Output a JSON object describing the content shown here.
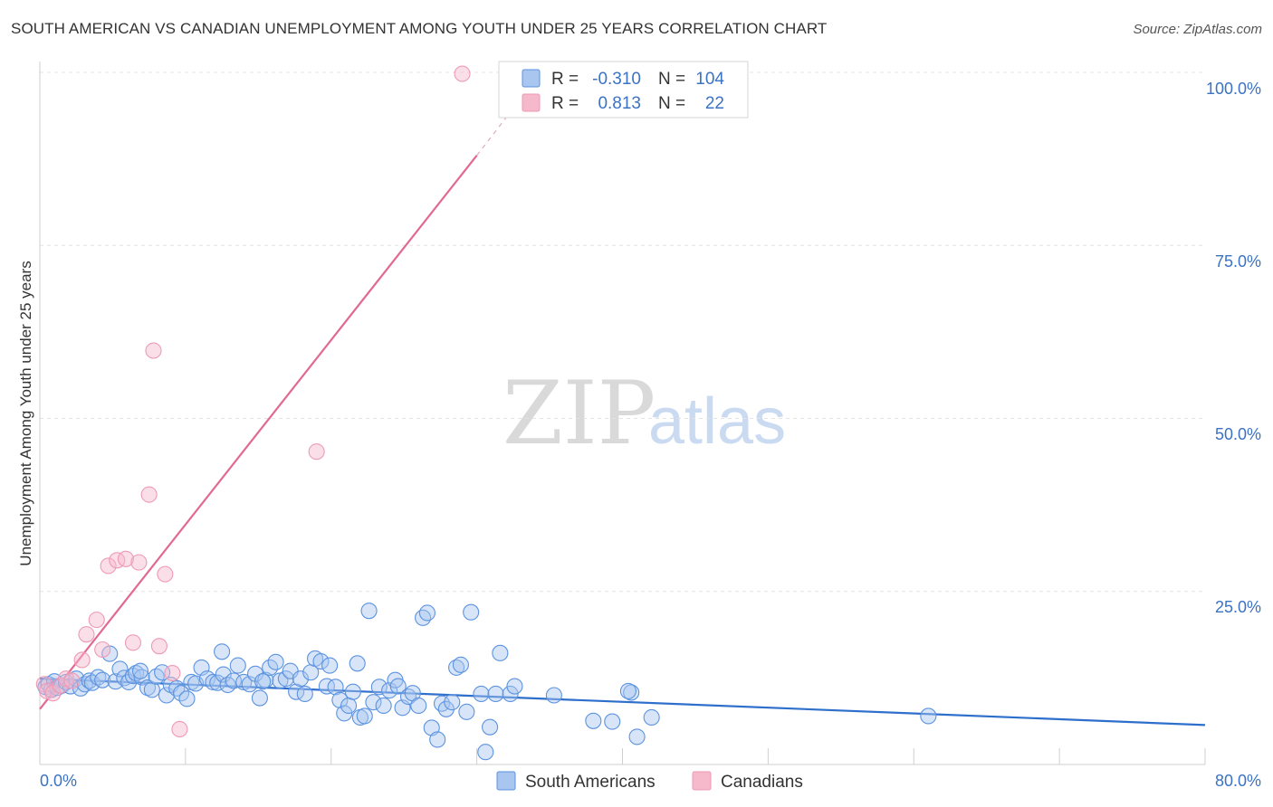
{
  "header": {
    "title": "SOUTH AMERICAN VS CANADIAN UNEMPLOYMENT AMONG YOUTH UNDER 25 YEARS CORRELATION CHART",
    "source": "Source: ZipAtlas.com"
  },
  "watermark": {
    "zip": "ZIP",
    "atlas": "atlas"
  },
  "stats_legend": {
    "rows": [
      {
        "r_label": "R =",
        "r_value": "-0.310",
        "n_label": "N =",
        "n_value": "104",
        "color": "#a8c6f0"
      },
      {
        "r_label": "R =",
        "r_value": "0.813",
        "n_label": "N =",
        "n_value": "22",
        "color": "#f6b8cb"
      }
    ]
  },
  "chart_data": {
    "type": "scatter",
    "title": "SOUTH AMERICAN VS CANADIAN UNEMPLOYMENT AMONG YOUTH UNDER 25 YEARS CORRELATION CHART",
    "xlabel": "",
    "ylabel": "Unemployment Among Youth under 25 years",
    "xlim": [
      0,
      80
    ],
    "ylim": [
      0,
      100
    ],
    "x_tick_labels": [
      "0.0%",
      "80.0%"
    ],
    "y_ticks": [
      25,
      50,
      75,
      100
    ],
    "y_tick_labels": [
      "25.0%",
      "50.0%",
      "75.0%",
      "100.0%"
    ],
    "grid": true,
    "legend": [
      "South Americans",
      "Canadians"
    ],
    "series": [
      {
        "name": "South Americans",
        "color": "#5b93e0",
        "fill": "#a8c6f0",
        "trend": {
          "x": [
            0,
            80
          ],
          "y": [
            12.4,
            5.7
          ],
          "color": "#2e6fcc"
        },
        "points": [
          [
            0.4,
            11.2
          ],
          [
            0.6,
            11.6
          ],
          [
            0.8,
            10.8
          ],
          [
            1.0,
            12.0
          ],
          [
            1.2,
            11.1
          ],
          [
            1.5,
            11.4
          ],
          [
            1.8,
            11.9
          ],
          [
            2.1,
            11.3
          ],
          [
            2.5,
            12.4
          ],
          [
            2.8,
            11.0
          ],
          [
            3.1,
            11.6
          ],
          [
            3.4,
            12.1
          ],
          [
            3.6,
            11.8
          ],
          [
            4.0,
            12.6
          ],
          [
            4.3,
            12.2
          ],
          [
            4.8,
            16.0
          ],
          [
            5.2,
            12.0
          ],
          [
            5.5,
            13.8
          ],
          [
            5.8,
            12.5
          ],
          [
            6.1,
            11.9
          ],
          [
            6.4,
            12.8
          ],
          [
            6.6,
            13.2
          ],
          [
            7.0,
            12.6
          ],
          [
            7.4,
            11.1
          ],
          [
            7.7,
            10.8
          ],
          [
            8.0,
            12.7
          ],
          [
            8.4,
            13.3
          ],
          [
            8.7,
            10.0
          ],
          [
            9.0,
            11.5
          ],
          [
            9.4,
            11.0
          ],
          [
            9.7,
            10.3
          ],
          [
            10.1,
            9.5
          ],
          [
            10.4,
            11.9
          ],
          [
            10.7,
            11.7
          ],
          [
            11.1,
            14.0
          ],
          [
            11.5,
            12.4
          ],
          [
            11.9,
            11.9
          ],
          [
            12.2,
            11.8
          ],
          [
            12.6,
            13.0
          ],
          [
            12.5,
            16.3
          ],
          [
            12.9,
            11.5
          ],
          [
            13.3,
            12.1
          ],
          [
            13.6,
            14.3
          ],
          [
            14.0,
            11.9
          ],
          [
            14.4,
            11.6
          ],
          [
            14.8,
            13.1
          ],
          [
            15.1,
            9.6
          ],
          [
            15.5,
            12.2
          ],
          [
            15.8,
            14.0
          ],
          [
            16.2,
            14.8
          ],
          [
            16.5,
            12.1
          ],
          [
            16.9,
            12.4
          ],
          [
            17.2,
            13.5
          ],
          [
            17.6,
            10.5
          ],
          [
            17.9,
            12.4
          ],
          [
            18.2,
            10.2
          ],
          [
            18.6,
            13.3
          ],
          [
            18.9,
            15.3
          ],
          [
            19.3,
            14.9
          ],
          [
            19.7,
            11.3
          ],
          [
            19.9,
            14.3
          ],
          [
            20.3,
            11.2
          ],
          [
            20.6,
            9.3
          ],
          [
            20.9,
            7.4
          ],
          [
            21.2,
            8.5
          ],
          [
            21.5,
            10.5
          ],
          [
            21.8,
            14.6
          ],
          [
            22.0,
            6.8
          ],
          [
            22.3,
            7.0
          ],
          [
            22.6,
            22.2
          ],
          [
            22.9,
            9.0
          ],
          [
            23.3,
            11.2
          ],
          [
            23.6,
            8.5
          ],
          [
            24.0,
            10.7
          ],
          [
            24.4,
            12.2
          ],
          [
            24.6,
            11.3
          ],
          [
            24.9,
            8.2
          ],
          [
            25.3,
            9.8
          ],
          [
            25.6,
            10.3
          ],
          [
            26.0,
            8.5
          ],
          [
            26.3,
            21.2
          ],
          [
            26.6,
            21.9
          ],
          [
            26.9,
            5.3
          ],
          [
            27.3,
            3.6
          ],
          [
            27.6,
            8.8
          ],
          [
            27.9,
            8.0
          ],
          [
            28.3,
            9.0
          ],
          [
            28.6,
            14.0
          ],
          [
            28.9,
            14.4
          ],
          [
            29.3,
            7.6
          ],
          [
            29.6,
            22.0
          ],
          [
            30.3,
            10.2
          ],
          [
            30.6,
            1.8
          ],
          [
            30.9,
            5.4
          ],
          [
            31.3,
            10.2
          ],
          [
            31.6,
            16.1
          ],
          [
            32.3,
            10.2
          ],
          [
            32.6,
            11.3
          ],
          [
            35.3,
            10.0
          ],
          [
            38.0,
            6.3
          ],
          [
            39.3,
            6.2
          ],
          [
            40.6,
            10.4
          ],
          [
            41.0,
            4.0
          ],
          [
            42.0,
            6.8
          ],
          [
            61.0,
            7.0
          ],
          [
            40.4,
            10.6
          ],
          [
            15.3,
            12.0
          ],
          [
            6.9,
            13.5
          ]
        ]
      },
      {
        "name": "Canadians",
        "color": "#ee9ab5",
        "fill": "#f6b8cb",
        "trend": {
          "x": [
            0,
            30
          ],
          "y": [
            8.0,
            88.0
          ],
          "x_dashed_to": 33.5,
          "y_dashed_to": 97.5,
          "color": "#e26990"
        },
        "points": [
          [
            0.3,
            11.6
          ],
          [
            0.5,
            10.6
          ],
          [
            0.9,
            10.3
          ],
          [
            1.4,
            11.4
          ],
          [
            1.8,
            12.4
          ],
          [
            2.2,
            12.1
          ],
          [
            2.9,
            15.1
          ],
          [
            3.2,
            18.8
          ],
          [
            3.9,
            20.9
          ],
          [
            4.3,
            16.6
          ],
          [
            4.7,
            28.7
          ],
          [
            5.3,
            29.5
          ],
          [
            5.9,
            29.7
          ],
          [
            6.4,
            17.6
          ],
          [
            6.8,
            29.2
          ],
          [
            7.5,
            39.0
          ],
          [
            7.8,
            59.8
          ],
          [
            8.2,
            17.1
          ],
          [
            8.6,
            27.5
          ],
          [
            9.1,
            13.2
          ],
          [
            9.6,
            5.1
          ],
          [
            19.0,
            45.2
          ],
          [
            29.0,
            99.8
          ]
        ]
      }
    ]
  },
  "bottom_legend": {
    "items": [
      "South Americans",
      "Canadians"
    ]
  }
}
